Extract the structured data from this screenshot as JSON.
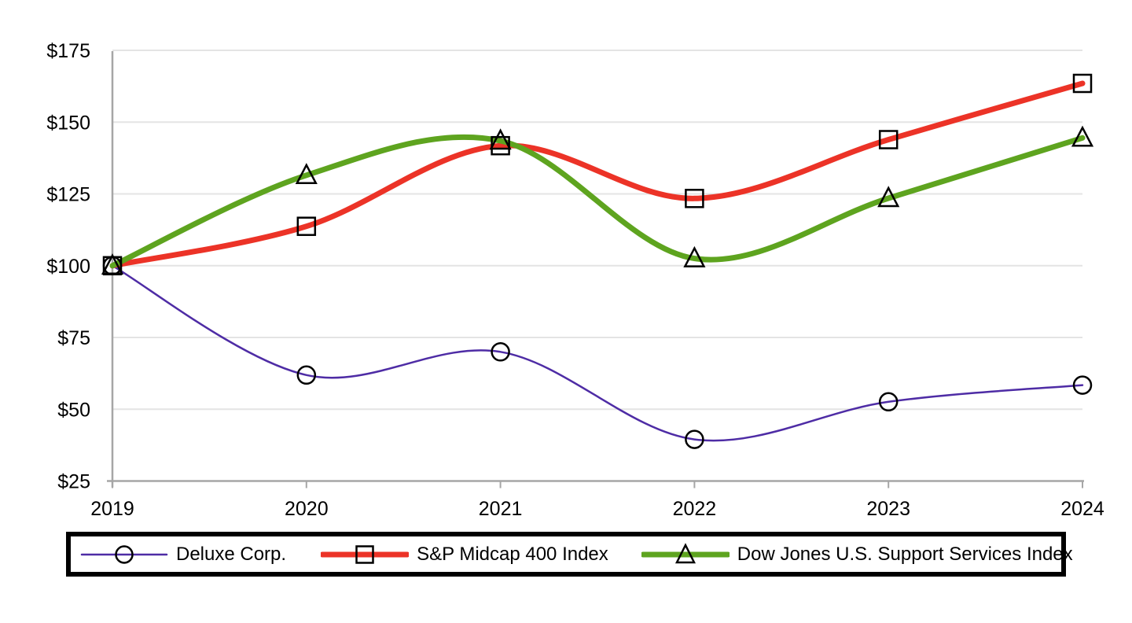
{
  "chart_data": {
    "type": "line",
    "title": "",
    "xlabel": "",
    "ylabel": "",
    "categories": [
      "2019",
      "2020",
      "2021",
      "2022",
      "2023",
      "2024"
    ],
    "y_ticks": [
      {
        "label": "$175",
        "value": 175
      },
      {
        "label": "$150",
        "value": 150
      },
      {
        "label": "$125",
        "value": 125
      },
      {
        "label": "$100",
        "value": 100
      },
      {
        "label": "$75",
        "value": 75
      },
      {
        "label": "$50",
        "value": 50
      },
      {
        "label": "$25",
        "value": 25
      }
    ],
    "ylim": [
      25,
      175
    ],
    "grid": "horizontal",
    "legend_position": "bottom",
    "smooth_lines": true,
    "series": [
      {
        "name": "Deluxe Corp.",
        "marker": "circle",
        "color": "#4E2CA5",
        "line_width": 2.5,
        "values": [
          100,
          61.9,
          70.0,
          39.5,
          52.6,
          58.4
        ]
      },
      {
        "name": "S&P Midcap 400 Index",
        "marker": "square",
        "color": "#EC3327",
        "line_width": 7,
        "values": [
          100,
          113.7,
          141.8,
          123.4,
          143.9,
          163.5
        ]
      },
      {
        "name": "Dow Jones U.S. Support Services Index",
        "marker": "triangle",
        "color": "#5EA41F",
        "line_width": 7,
        "values": [
          100,
          131.5,
          143.5,
          102.5,
          123.5,
          144.5
        ]
      }
    ]
  },
  "colors": {
    "background": "#ffffff",
    "gridline": "#e4e4e4",
    "axis": "#a6a6a6",
    "marker_stroke": "#000000",
    "legend_border": "#000000",
    "text": "#000000"
  }
}
